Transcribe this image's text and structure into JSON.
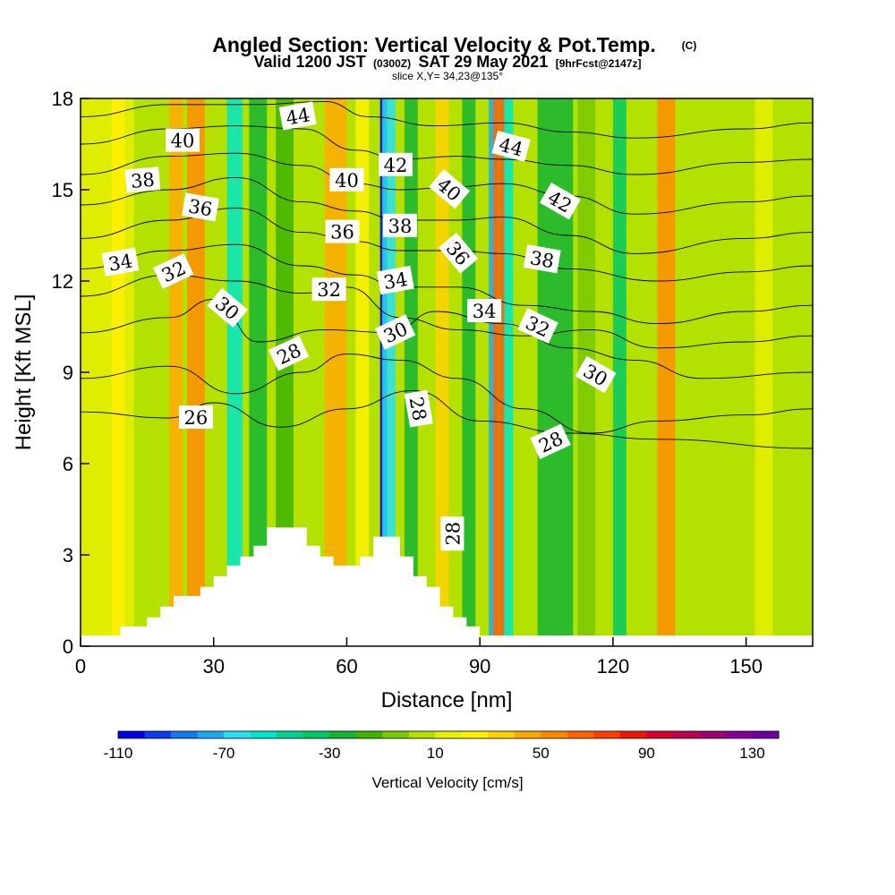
{
  "chart_data": {
    "type": "heatmap",
    "title": "Angled Section: Vertical Velocity & Pot.Temp.",
    "title_mark": "(C)",
    "subtitle": {
      "valid_prefix": "Valid 1200 JST",
      "zulu": "(0300Z)",
      "date": "SAT 29 May 2021",
      "forecast": "[9hrFcst@2147z]"
    },
    "slice_label": "slice X,Y= 34,23@135°",
    "xlabel": "Distance [nm]",
    "ylabel": "Height [Kft MSL]",
    "xlim": [
      0,
      165
    ],
    "ylim": [
      0,
      18
    ],
    "x_ticks": [
      0,
      30,
      60,
      90,
      120,
      150
    ],
    "y_ticks": [
      0,
      3,
      6,
      9,
      12,
      15,
      18
    ],
    "colorbar": {
      "label": "Vertical Velocity [cm/s]",
      "levels": [
        -110,
        -100,
        -90,
        -80,
        -70,
        -60,
        -50,
        -40,
        -30,
        -20,
        -10,
        0,
        10,
        20,
        30,
        40,
        50,
        60,
        70,
        80,
        90,
        100,
        110,
        120,
        130,
        140
      ],
      "tick_values": [
        "-110",
        "-70",
        "-30",
        "10",
        "50",
        "90",
        "130"
      ],
      "colors": [
        "#0000e6",
        "#0a3cf0",
        "#1478f0",
        "#1eaaf0",
        "#28e0f0",
        "#00e6c8",
        "#00d296",
        "#00c864",
        "#14b432",
        "#3cb400",
        "#78c800",
        "#b4e100",
        "#e6f000",
        "#fff000",
        "#ffd200",
        "#ffaa00",
        "#ff8c00",
        "#ff6400",
        "#ff3c00",
        "#f0140a",
        "#d7002d",
        "#be0050",
        "#a00073",
        "#820096",
        "#6e00a0"
      ]
    },
    "vertical_velocity_bands": [
      {
        "x": 0,
        "w": 12,
        "v": 10
      },
      {
        "x": 7,
        "w": 3,
        "v": 20
      },
      {
        "x": 20,
        "w": 3,
        "v": 40
      },
      {
        "x": 24,
        "w": 4,
        "v": 50
      },
      {
        "x": 33,
        "w": 3.5,
        "v": -60
      },
      {
        "x": 38,
        "w": 4,
        "v": -30
      },
      {
        "x": 44,
        "w": 4,
        "v": -20
      },
      {
        "x": 55,
        "w": 5,
        "v": 40
      },
      {
        "x": 62,
        "w": 3,
        "v": 20
      },
      {
        "x": 67.5,
        "w": 1.6,
        "v": -110
      },
      {
        "x": 68,
        "w": 3,
        "v": -70
      },
      {
        "x": 73,
        "w": 3,
        "v": -30
      },
      {
        "x": 80,
        "w": 3,
        "v": 30
      },
      {
        "x": 86,
        "w": 3,
        "v": -30
      },
      {
        "x": 92,
        "w": 2,
        "v": -80
      },
      {
        "x": 94.5,
        "w": 3,
        "v": -60
      },
      {
        "x": 93,
        "w": 2.5,
        "v": 60
      },
      {
        "x": 103,
        "w": 8,
        "v": -30
      },
      {
        "x": 112,
        "w": 4,
        "v": -10
      },
      {
        "x": 120,
        "w": 3,
        "v": -40
      },
      {
        "x": 130,
        "w": 4,
        "v": 50
      },
      {
        "x": 140,
        "w": 5,
        "v": 0
      },
      {
        "x": 152,
        "w": 4,
        "v": 10
      },
      {
        "x": 160,
        "w": 4,
        "v": 0
      }
    ],
    "terrain_profile": [
      [
        0,
        0.35
      ],
      [
        9,
        0.35
      ],
      [
        9,
        0.65
      ],
      [
        15,
        0.65
      ],
      [
        15,
        0.95
      ],
      [
        18,
        0.95
      ],
      [
        18,
        1.3
      ],
      [
        21,
        1.3
      ],
      [
        21,
        1.65
      ],
      [
        27,
        1.65
      ],
      [
        27,
        1.95
      ],
      [
        30,
        1.95
      ],
      [
        30,
        2.3
      ],
      [
        33,
        2.3
      ],
      [
        33,
        2.65
      ],
      [
        36,
        2.65
      ],
      [
        36,
        2.95
      ],
      [
        39,
        2.95
      ],
      [
        39,
        3.3
      ],
      [
        42,
        3.3
      ],
      [
        42,
        3.9
      ],
      [
        51,
        3.9
      ],
      [
        51,
        3.3
      ],
      [
        54,
        3.3
      ],
      [
        54,
        2.95
      ],
      [
        57,
        2.95
      ],
      [
        57,
        2.65
      ],
      [
        63,
        2.65
      ],
      [
        63,
        2.95
      ],
      [
        66,
        2.95
      ],
      [
        66,
        3.6
      ],
      [
        72,
        3.6
      ],
      [
        72,
        2.95
      ],
      [
        75,
        2.95
      ],
      [
        75,
        2.3
      ],
      [
        78,
        2.3
      ],
      [
        78,
        1.95
      ],
      [
        81,
        1.95
      ],
      [
        81,
        1.3
      ],
      [
        84,
        1.3
      ],
      [
        84,
        0.95
      ],
      [
        87,
        0.95
      ],
      [
        87,
        0.65
      ],
      [
        90,
        0.65
      ],
      [
        90,
        0.35
      ],
      [
        165,
        0.35
      ]
    ],
    "isentropes": [
      {
        "value": 26,
        "points": [
          [
            0,
            7.7
          ],
          [
            20,
            7.5
          ],
          [
            30,
            8.0
          ],
          [
            45,
            7.2
          ],
          [
            60,
            7.8
          ],
          [
            75,
            8.4
          ],
          [
            90,
            7.4
          ],
          [
            110,
            7.0
          ],
          [
            130,
            6.8
          ],
          [
            165,
            6.5
          ]
        ]
      },
      {
        "value": 28,
        "points": [
          [
            0,
            8.8
          ],
          [
            20,
            9.2
          ],
          [
            35,
            8.3
          ],
          [
            50,
            9.0
          ],
          [
            60,
            9.6
          ],
          [
            72,
            9.4
          ],
          [
            85,
            8.8
          ],
          [
            100,
            7.8
          ],
          [
            115,
            7.0
          ],
          [
            130,
            7.4
          ],
          [
            150,
            7.6
          ],
          [
            165,
            7.8
          ]
        ]
      },
      {
        "value": 30,
        "points": [
          [
            0,
            10.3
          ],
          [
            20,
            10.8
          ],
          [
            30,
            11.4
          ],
          [
            40,
            10.0
          ],
          [
            55,
            10.4
          ],
          [
            70,
            10.3
          ],
          [
            80,
            11.0
          ],
          [
            95,
            10.6
          ],
          [
            110,
            9.8
          ],
          [
            125,
            9.4
          ],
          [
            140,
            8.8
          ],
          [
            165,
            9.0
          ]
        ]
      },
      {
        "value": 32,
        "points": [
          [
            0,
            11.5
          ],
          [
            20,
            12.2
          ],
          [
            35,
            12.0
          ],
          [
            50,
            11.6
          ],
          [
            60,
            11.8
          ],
          [
            72,
            10.8
          ],
          [
            85,
            10.4
          ],
          [
            100,
            10.2
          ],
          [
            115,
            10.4
          ],
          [
            130,
            9.8
          ],
          [
            150,
            10.0
          ],
          [
            165,
            10.2
          ]
        ]
      },
      {
        "value": 34,
        "points": [
          [
            0,
            12.4
          ],
          [
            20,
            13.0
          ],
          [
            35,
            13.2
          ],
          [
            50,
            12.5
          ],
          [
            62,
            12.2
          ],
          [
            72,
            11.8
          ],
          [
            85,
            11.8
          ],
          [
            100,
            11.2
          ],
          [
            115,
            11.0
          ],
          [
            130,
            10.6
          ],
          [
            150,
            11.0
          ],
          [
            165,
            11.2
          ]
        ]
      },
      {
        "value": 36,
        "points": [
          [
            0,
            13.4
          ],
          [
            20,
            14.0
          ],
          [
            35,
            14.4
          ],
          [
            50,
            13.6
          ],
          [
            62,
            13.3
          ],
          [
            72,
            13.0
          ],
          [
            85,
            13.0
          ],
          [
            95,
            12.9
          ],
          [
            110,
            12.4
          ],
          [
            130,
            12.0
          ],
          [
            150,
            12.3
          ],
          [
            165,
            12.5
          ]
        ]
      },
      {
        "value": 38,
        "points": [
          [
            0,
            14.5
          ],
          [
            20,
            15.0
          ],
          [
            35,
            15.4
          ],
          [
            50,
            14.6
          ],
          [
            62,
            14.3
          ],
          [
            72,
            14.0
          ],
          [
            85,
            14.0
          ],
          [
            95,
            14.1
          ],
          [
            110,
            13.5
          ],
          [
            125,
            12.9
          ],
          [
            150,
            13.4
          ],
          [
            165,
            13.6
          ]
        ]
      },
      {
        "value": 40,
        "points": [
          [
            0,
            15.5
          ],
          [
            20,
            16.1
          ],
          [
            35,
            16.2
          ],
          [
            50,
            15.8
          ],
          [
            62,
            15.2
          ],
          [
            72,
            15.0
          ],
          [
            85,
            15.1
          ],
          [
            95,
            15.2
          ],
          [
            110,
            14.8
          ],
          [
            125,
            14.2
          ],
          [
            150,
            14.6
          ],
          [
            165,
            14.8
          ]
        ]
      },
      {
        "value": 42,
        "points": [
          [
            0,
            16.5
          ],
          [
            20,
            17.0
          ],
          [
            35,
            17.1
          ],
          [
            50,
            17.0
          ],
          [
            62,
            16.3
          ],
          [
            72,
            16.0
          ],
          [
            85,
            16.1
          ],
          [
            95,
            16.0
          ],
          [
            110,
            15.8
          ],
          [
            125,
            15.5
          ],
          [
            150,
            15.9
          ],
          [
            165,
            16.0
          ]
        ]
      },
      {
        "value": 44,
        "points": [
          [
            0,
            17.4
          ],
          [
            20,
            17.8
          ],
          [
            40,
            17.8
          ],
          [
            55,
            17.9
          ],
          [
            65,
            17.4
          ],
          [
            80,
            17.1
          ],
          [
            95,
            17.2
          ],
          [
            110,
            16.9
          ],
          [
            125,
            16.7
          ],
          [
            150,
            17.0
          ],
          [
            165,
            17.2
          ]
        ]
      }
    ],
    "contour_labels": [
      {
        "text": "44",
        "x": 49,
        "y": 17.4,
        "angle": -10
      },
      {
        "text": "40",
        "x": 23,
        "y": 16.6,
        "angle": 0
      },
      {
        "text": "38",
        "x": 14,
        "y": 15.3,
        "angle": -5
      },
      {
        "text": "36",
        "x": 27,
        "y": 14.4,
        "angle": 10
      },
      {
        "text": "34",
        "x": 9,
        "y": 12.6,
        "angle": -10
      },
      {
        "text": "32",
        "x": 21,
        "y": 12.3,
        "angle": -25
      },
      {
        "text": "30",
        "x": 33,
        "y": 11.1,
        "angle": 40
      },
      {
        "text": "28",
        "x": 47,
        "y": 9.6,
        "angle": -25
      },
      {
        "text": "26",
        "x": 26,
        "y": 7.5,
        "angle": 0
      },
      {
        "text": "40",
        "x": 60,
        "y": 15.3,
        "angle": 0
      },
      {
        "text": "36",
        "x": 59,
        "y": 13.6,
        "angle": 0
      },
      {
        "text": "32",
        "x": 56,
        "y": 11.7,
        "angle": 0
      },
      {
        "text": "42",
        "x": 71,
        "y": 15.8,
        "angle": 0
      },
      {
        "text": "38",
        "x": 72,
        "y": 13.8,
        "angle": 0
      },
      {
        "text": "34",
        "x": 71,
        "y": 12.0,
        "angle": -10
      },
      {
        "text": "30",
        "x": 71,
        "y": 10.3,
        "angle": -25
      },
      {
        "text": "28",
        "x": 76,
        "y": 7.8,
        "angle": 80
      },
      {
        "text": "40",
        "x": 83,
        "y": 15.0,
        "angle": 40
      },
      {
        "text": "36",
        "x": 85,
        "y": 12.9,
        "angle": 50
      },
      {
        "text": "34",
        "x": 91,
        "y": 11.0,
        "angle": 0
      },
      {
        "text": "28",
        "x": 84,
        "y": 3.7,
        "angle": -90
      },
      {
        "text": "44",
        "x": 97,
        "y": 16.4,
        "angle": 15
      },
      {
        "text": "42",
        "x": 108,
        "y": 14.6,
        "angle": 30
      },
      {
        "text": "38",
        "x": 104,
        "y": 12.7,
        "angle": 10
      },
      {
        "text": "32",
        "x": 103,
        "y": 10.5,
        "angle": 25
      },
      {
        "text": "30",
        "x": 116,
        "y": 8.9,
        "angle": 30
      },
      {
        "text": "28",
        "x": 106,
        "y": 6.7,
        "angle": -25
      }
    ]
  }
}
